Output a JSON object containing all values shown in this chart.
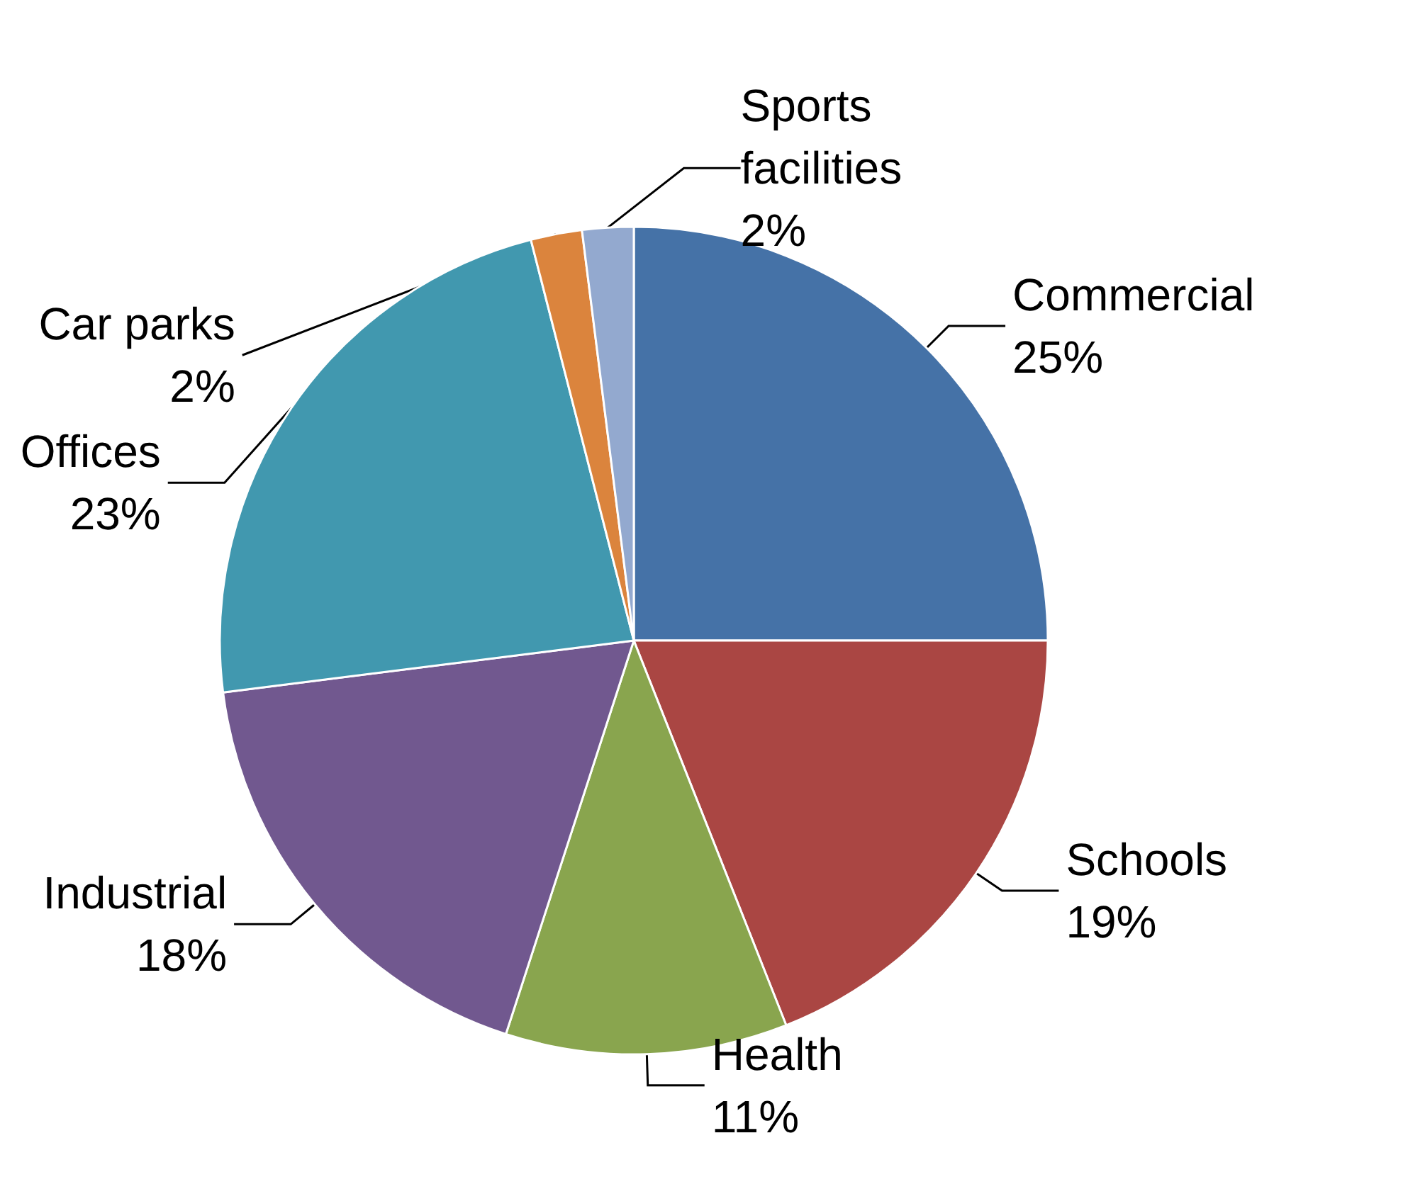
{
  "chart_data": {
    "type": "pie",
    "categories": [
      "Commercial",
      "Schools",
      "Health",
      "Industrial",
      "Offices",
      "Car parks",
      "Sports facilities"
    ],
    "values": [
      25,
      19,
      11,
      18,
      23,
      2,
      2
    ],
    "value_labels": [
      "25%",
      "19%",
      "11%",
      "18%",
      "23%",
      "2%",
      "2%"
    ],
    "colors": [
      "#4572a7",
      "#aa4643",
      "#89a54e",
      "#71588f",
      "#4198af",
      "#db843d",
      "#93a9cf"
    ]
  }
}
